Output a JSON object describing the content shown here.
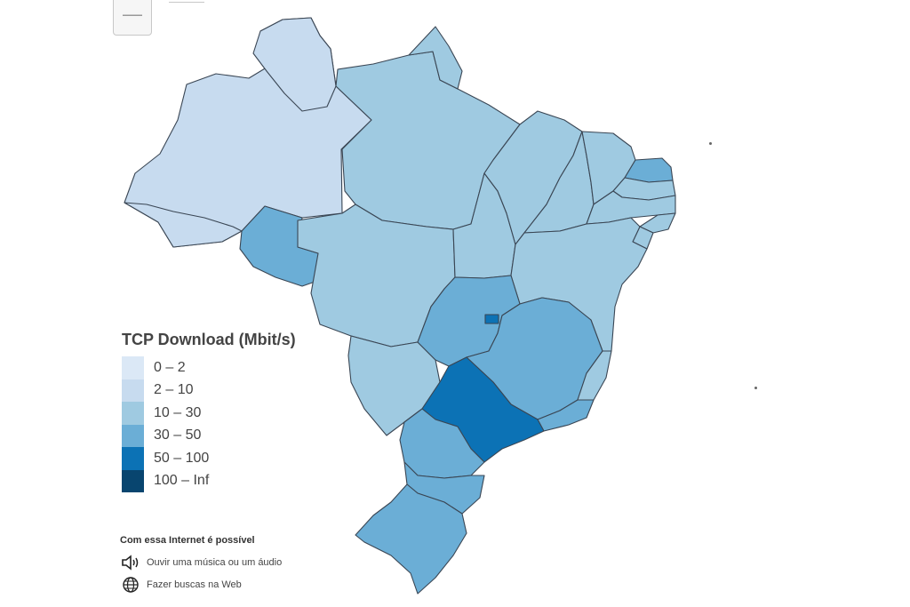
{
  "legend": {
    "title": "TCP Download (Mbit/s)",
    "bins": [
      {
        "label": "0 – 2",
        "color": "#dbe8f6"
      },
      {
        "label": "2 – 10",
        "color": "#c7dbef"
      },
      {
        "label": "10 – 30",
        "color": "#9fcae1"
      },
      {
        "label": "30 – 50",
        "color": "#6baed6"
      },
      {
        "label": "50 – 100",
        "color": "#0c72b5"
      },
      {
        "label": "100 – Inf",
        "color": "#08456f"
      }
    ]
  },
  "info": {
    "title": "Com essa Internet é possível",
    "items": [
      {
        "icon": "speaker-icon",
        "label": "Ouvir uma música ou um áudio"
      },
      {
        "icon": "globe-icon",
        "label": "Fazer buscas na Web"
      }
    ]
  },
  "zoom_out_symbol": "—",
  "regions": [
    {
      "name": "AM",
      "bin": "2 – 10"
    },
    {
      "name": "RR",
      "bin": "2 – 10"
    },
    {
      "name": "AC",
      "bin": "2 – 10"
    },
    {
      "name": "RO",
      "bin": "30 – 50"
    },
    {
      "name": "PA",
      "bin": "10 – 30"
    },
    {
      "name": "AP",
      "bin": "10 – 30"
    },
    {
      "name": "MT",
      "bin": "10 – 30"
    },
    {
      "name": "MS",
      "bin": "10 – 30"
    },
    {
      "name": "TO",
      "bin": "10 – 30"
    },
    {
      "name": "MA",
      "bin": "10 – 30"
    },
    {
      "name": "PI",
      "bin": "10 – 30"
    },
    {
      "name": "CE",
      "bin": "10 – 30"
    },
    {
      "name": "RN",
      "bin": "30 – 50"
    },
    {
      "name": "PB",
      "bin": "10 – 30"
    },
    {
      "name": "PE",
      "bin": "10 – 30"
    },
    {
      "name": "AL",
      "bin": "10 – 30"
    },
    {
      "name": "SE",
      "bin": "10 – 30"
    },
    {
      "name": "BA",
      "bin": "10 – 30"
    },
    {
      "name": "GO",
      "bin": "30 – 50"
    },
    {
      "name": "DF",
      "bin": "50 – 100"
    },
    {
      "name": "MG",
      "bin": "30 – 50"
    },
    {
      "name": "ES",
      "bin": "10 – 30"
    },
    {
      "name": "RJ",
      "bin": "30 – 50"
    },
    {
      "name": "SP",
      "bin": "50 – 100"
    },
    {
      "name": "PR",
      "bin": "30 – 50"
    },
    {
      "name": "SC",
      "bin": "30 – 50"
    },
    {
      "name": "RS",
      "bin": "30 – 50"
    }
  ]
}
